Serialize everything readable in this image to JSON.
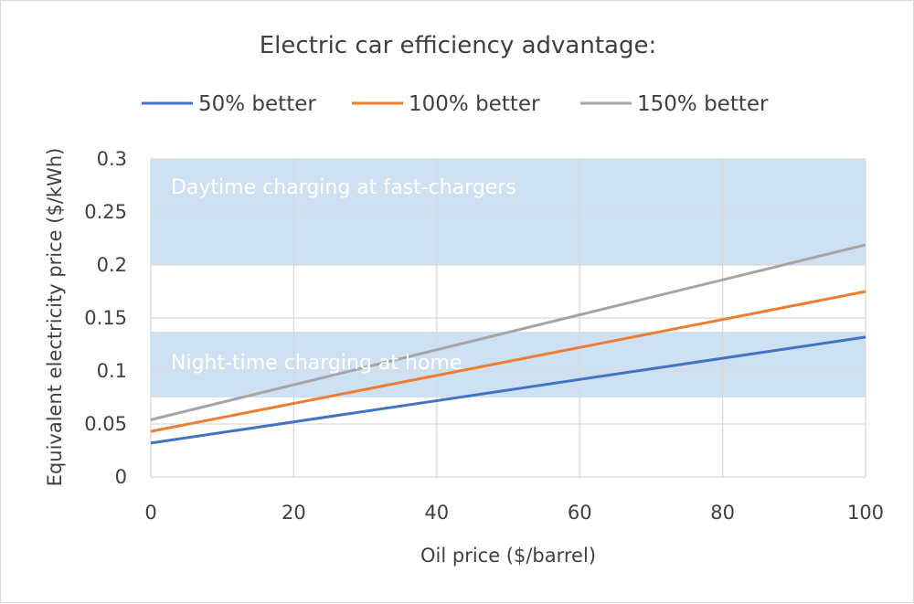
{
  "chart_data": {
    "type": "line",
    "title": "Electric car efficiency advantage:",
    "xlabel": "Oil price ($/barrel)",
    "ylabel": "Equivalent electricity price ($/kWh)",
    "xlim": [
      0,
      100
    ],
    "ylim": [
      0,
      0.3
    ],
    "x_ticks": [
      0,
      20,
      40,
      60,
      80,
      100
    ],
    "y_ticks": [
      0,
      0.05,
      0.1,
      0.15,
      0.2,
      0.25,
      0.3
    ],
    "y_tick_labels": [
      "0",
      "0.05",
      "0.1",
      "0.15",
      "0.2",
      "0.25",
      "0.3"
    ],
    "grid": true,
    "legend_position": "top",
    "series": [
      {
        "name": "50% better",
        "color": "#4472C4",
        "x": [
          0,
          100
        ],
        "y": [
          0.032,
          0.132
        ]
      },
      {
        "name": "100% better",
        "color": "#ED7D31",
        "x": [
          0,
          100
        ],
        "y": [
          0.043,
          0.175
        ]
      },
      {
        "name": "150% better",
        "color": "#A5A5A5",
        "x": [
          0,
          100
        ],
        "y": [
          0.054,
          0.219
        ]
      }
    ],
    "bands": [
      {
        "label": "Daytime charging at fast-chargers",
        "y_range": [
          0.2,
          0.3
        ],
        "color": "#BDD7EE"
      },
      {
        "label": "Night-time charging at home",
        "y_range": [
          0.075,
          0.137
        ],
        "color": "#BDD7EE"
      }
    ]
  }
}
